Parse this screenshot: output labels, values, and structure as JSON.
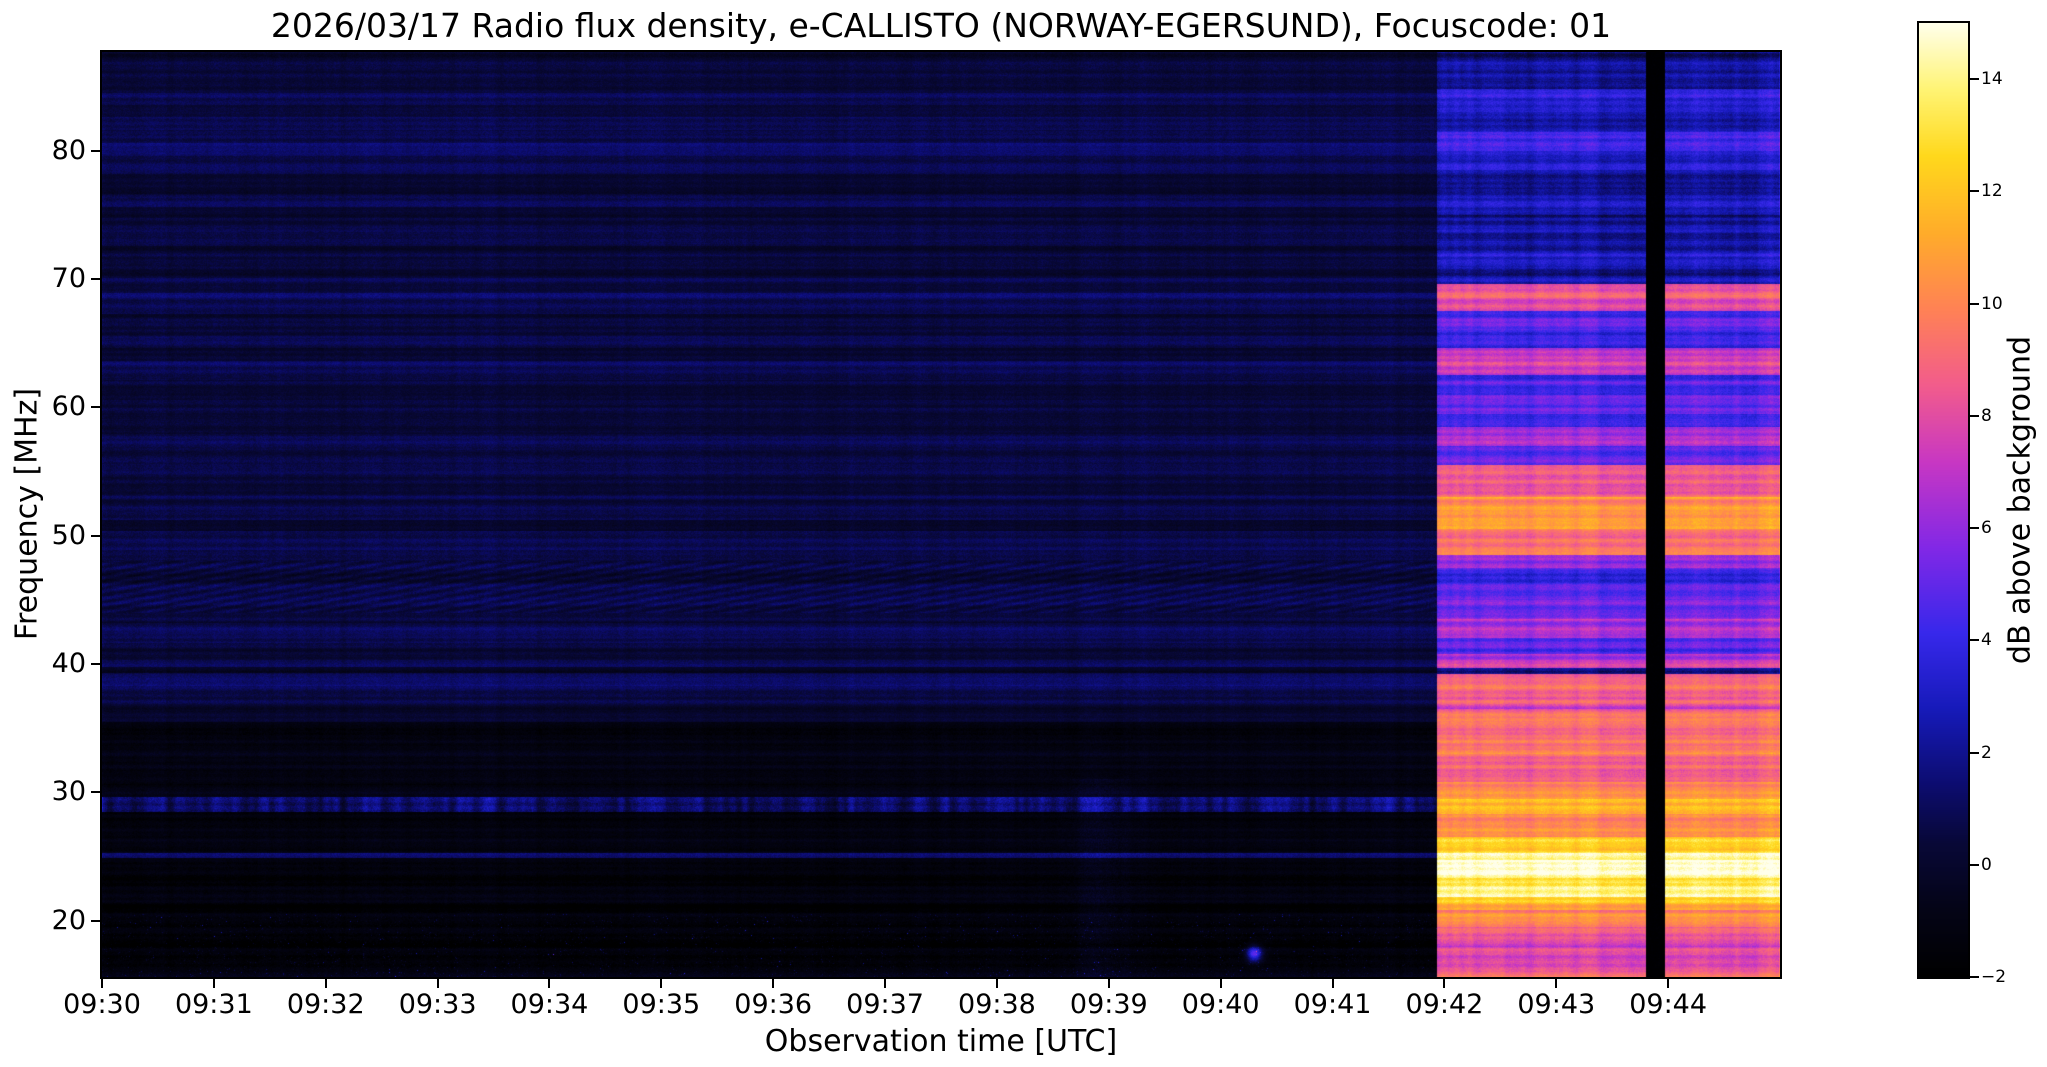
{
  "chart_data": {
    "type": "heatmap",
    "title": "2026/03/17  Radio flux density, e-CALLISTO (NORWAY-EGERSUND), Focuscode: 01",
    "xlabel": "Observation time [UTC]",
    "ylabel": "Frequency [MHz]",
    "x_ticks": [
      "09:30",
      "09:31",
      "09:32",
      "09:33",
      "09:34",
      "09:35",
      "09:36",
      "09:37",
      "09:38",
      "09:39",
      "09:40",
      "09:41",
      "09:42",
      "09:43",
      "09:44"
    ],
    "y_ticks": [
      20,
      30,
      40,
      50,
      60,
      70,
      80
    ],
    "freq_range": [
      15.6,
      87.7
    ],
    "time_start": "09:30",
    "duration_min": 15,
    "colorbar": {
      "label": "dB above background",
      "range": [
        -2,
        15
      ],
      "ticks": [
        {
          "v": 14,
          "label": "14"
        },
        {
          "v": 12,
          "label": "12"
        },
        {
          "v": 10,
          "label": "10"
        },
        {
          "v": 8,
          "label": "8"
        },
        {
          "v": 6,
          "label": "6"
        },
        {
          "v": 4,
          "label": "4"
        },
        {
          "v": 2,
          "label": "2"
        },
        {
          "v": 0,
          "label": "0"
        },
        {
          "v": -2,
          "label": "−2"
        }
      ]
    },
    "colormap": [
      [
        0.0,
        [
          0,
          0,
          0
        ]
      ],
      [
        0.07,
        [
          4,
          4,
          22
        ]
      ],
      [
        0.14,
        [
          8,
          8,
          55
        ]
      ],
      [
        0.2,
        [
          12,
          12,
          110
        ]
      ],
      [
        0.28,
        [
          22,
          26,
          185
        ]
      ],
      [
        0.36,
        [
          55,
          40,
          235
        ]
      ],
      [
        0.45,
        [
          130,
          40,
          230
        ]
      ],
      [
        0.54,
        [
          200,
          55,
          195
        ]
      ],
      [
        0.62,
        [
          242,
          92,
          140
        ]
      ],
      [
        0.7,
        [
          255,
          130,
          85
        ]
      ],
      [
        0.78,
        [
          255,
          172,
          42
        ]
      ],
      [
        0.86,
        [
          255,
          216,
          28
        ]
      ],
      [
        0.93,
        [
          255,
          244,
          116
        ]
      ],
      [
        1.0,
        [
          255,
          255,
          236
        ]
      ]
    ],
    "quiet_bands": [
      [
        87.7,
        84.5,
        0.25
      ],
      [
        84.5,
        83.6,
        0.85
      ],
      [
        83.6,
        82.6,
        0.45
      ],
      [
        82.6,
        81.6,
        1.05
      ],
      [
        81.6,
        80.6,
        0.55
      ],
      [
        80.6,
        79.6,
        1.15
      ],
      [
        79.6,
        78.2,
        0.75
      ],
      [
        78.2,
        76.6,
        0.35
      ],
      [
        76.6,
        75.6,
        0.85
      ],
      [
        75.6,
        73.6,
        0.35
      ],
      [
        73.6,
        72.6,
        0.75
      ],
      [
        72.6,
        70.1,
        0.2
      ],
      [
        70.1,
        68.9,
        0.5
      ],
      [
        68.9,
        67.3,
        1.1
      ],
      [
        67.3,
        65.6,
        0.35
      ],
      [
        65.6,
        64.6,
        0.75
      ],
      [
        64.6,
        63.6,
        0.3
      ],
      [
        63.6,
        62.1,
        0.95
      ],
      [
        62.1,
        60.6,
        0.3
      ],
      [
        60.6,
        59.6,
        0.65
      ],
      [
        59.6,
        57.9,
        0.2
      ],
      [
        57.9,
        56.9,
        0.75
      ],
      [
        56.9,
        55.6,
        0.3
      ],
      [
        55.6,
        54.6,
        0.65
      ],
      [
        54.6,
        53.1,
        0.3
      ],
      [
        53.1,
        51.2,
        0.6
      ],
      [
        51.2,
        50.4,
        -0.35
      ],
      [
        50.4,
        48.9,
        0.95
      ],
      [
        48.9,
        48.0,
        0.4
      ],
      [
        48.0,
        44.0,
        0.55
      ],
      [
        44.0,
        43.2,
        0.3
      ],
      [
        43.2,
        41.6,
        0.95
      ],
      [
        41.6,
        40.6,
        0.4
      ],
      [
        40.6,
        39.8,
        0.75
      ],
      [
        39.8,
        39.3,
        -0.2
      ],
      [
        39.3,
        38.3,
        0.85
      ],
      [
        38.3,
        36.3,
        0.3
      ],
      [
        36.3,
        35.5,
        0.0
      ],
      [
        35.5,
        30.6,
        -1.15
      ],
      [
        30.6,
        29.6,
        -0.75
      ],
      [
        29.6,
        28.5,
        1.35
      ],
      [
        28.5,
        25.3,
        -1.3
      ],
      [
        25.3,
        24.9,
        0.8
      ],
      [
        24.9,
        20.4,
        -1.4
      ],
      [
        20.4,
        15.6,
        -1.5
      ]
    ],
    "burst_bands": [
      [
        87.7,
        84.8,
        2.0
      ],
      [
        84.8,
        83.0,
        3.5
      ],
      [
        83.0,
        81.5,
        2.8
      ],
      [
        81.5,
        80.0,
        4.0
      ],
      [
        80.0,
        78.5,
        3.2
      ],
      [
        78.5,
        77.0,
        2.4
      ],
      [
        77.0,
        75.0,
        3.0
      ],
      [
        75.0,
        73.0,
        2.2
      ],
      [
        73.0,
        71.0,
        2.8
      ],
      [
        71.0,
        69.6,
        2.2
      ],
      [
        69.6,
        67.5,
        8.5
      ],
      [
        67.5,
        66.0,
        5.0
      ],
      [
        66.0,
        64.6,
        4.0
      ],
      [
        64.6,
        62.5,
        7.5
      ],
      [
        62.5,
        61.0,
        4.5
      ],
      [
        61.0,
        59.5,
        5.5
      ],
      [
        59.5,
        58.5,
        4.0
      ],
      [
        58.5,
        57.0,
        6.5
      ],
      [
        57.0,
        55.5,
        4.6
      ],
      [
        55.5,
        53.0,
        8.5
      ],
      [
        53.0,
        50.5,
        10.5
      ],
      [
        50.5,
        48.5,
        9.5
      ],
      [
        48.5,
        47.5,
        6.0
      ],
      [
        47.5,
        45.0,
        4.6
      ],
      [
        45.0,
        43.5,
        5.2
      ],
      [
        43.5,
        42.0,
        6.6
      ],
      [
        42.0,
        40.8,
        5.0
      ],
      [
        40.8,
        39.7,
        7.2
      ],
      [
        39.7,
        39.2,
        2.2
      ],
      [
        39.2,
        36.5,
        8.2
      ],
      [
        36.5,
        33.0,
        9.5
      ],
      [
        33.0,
        30.8,
        8.6
      ],
      [
        30.8,
        29.5,
        10.5
      ],
      [
        29.5,
        28.3,
        12.0
      ],
      [
        28.3,
        26.5,
        10.2
      ],
      [
        26.5,
        25.3,
        12.2
      ],
      [
        25.3,
        24.7,
        13.5
      ],
      [
        24.7,
        23.3,
        14.8
      ],
      [
        23.3,
        21.8,
        13.8
      ],
      [
        21.8,
        20.8,
        12.0
      ],
      [
        20.8,
        19.5,
        10.2
      ],
      [
        19.5,
        18.0,
        8.6
      ],
      [
        18.0,
        15.6,
        8.0
      ]
    ],
    "burst": {
      "start_min": 11.93,
      "end_min": 15,
      "gap_start_min": 13.8,
      "gap_end_min": 13.97
    },
    "features": {
      "speckle_freq_max": 20.5,
      "streaks": [
        {
          "t0": 8.55,
          "t1": 9.3,
          "freq_max": 31,
          "amp": 0.9
        }
      ],
      "blob": {
        "t": 10.3,
        "f": 17.4,
        "value": 6.5,
        "t_sigma": 0.05,
        "f_sigma": 0.45
      },
      "line_band": [
        29.6,
        28.5
      ]
    }
  }
}
